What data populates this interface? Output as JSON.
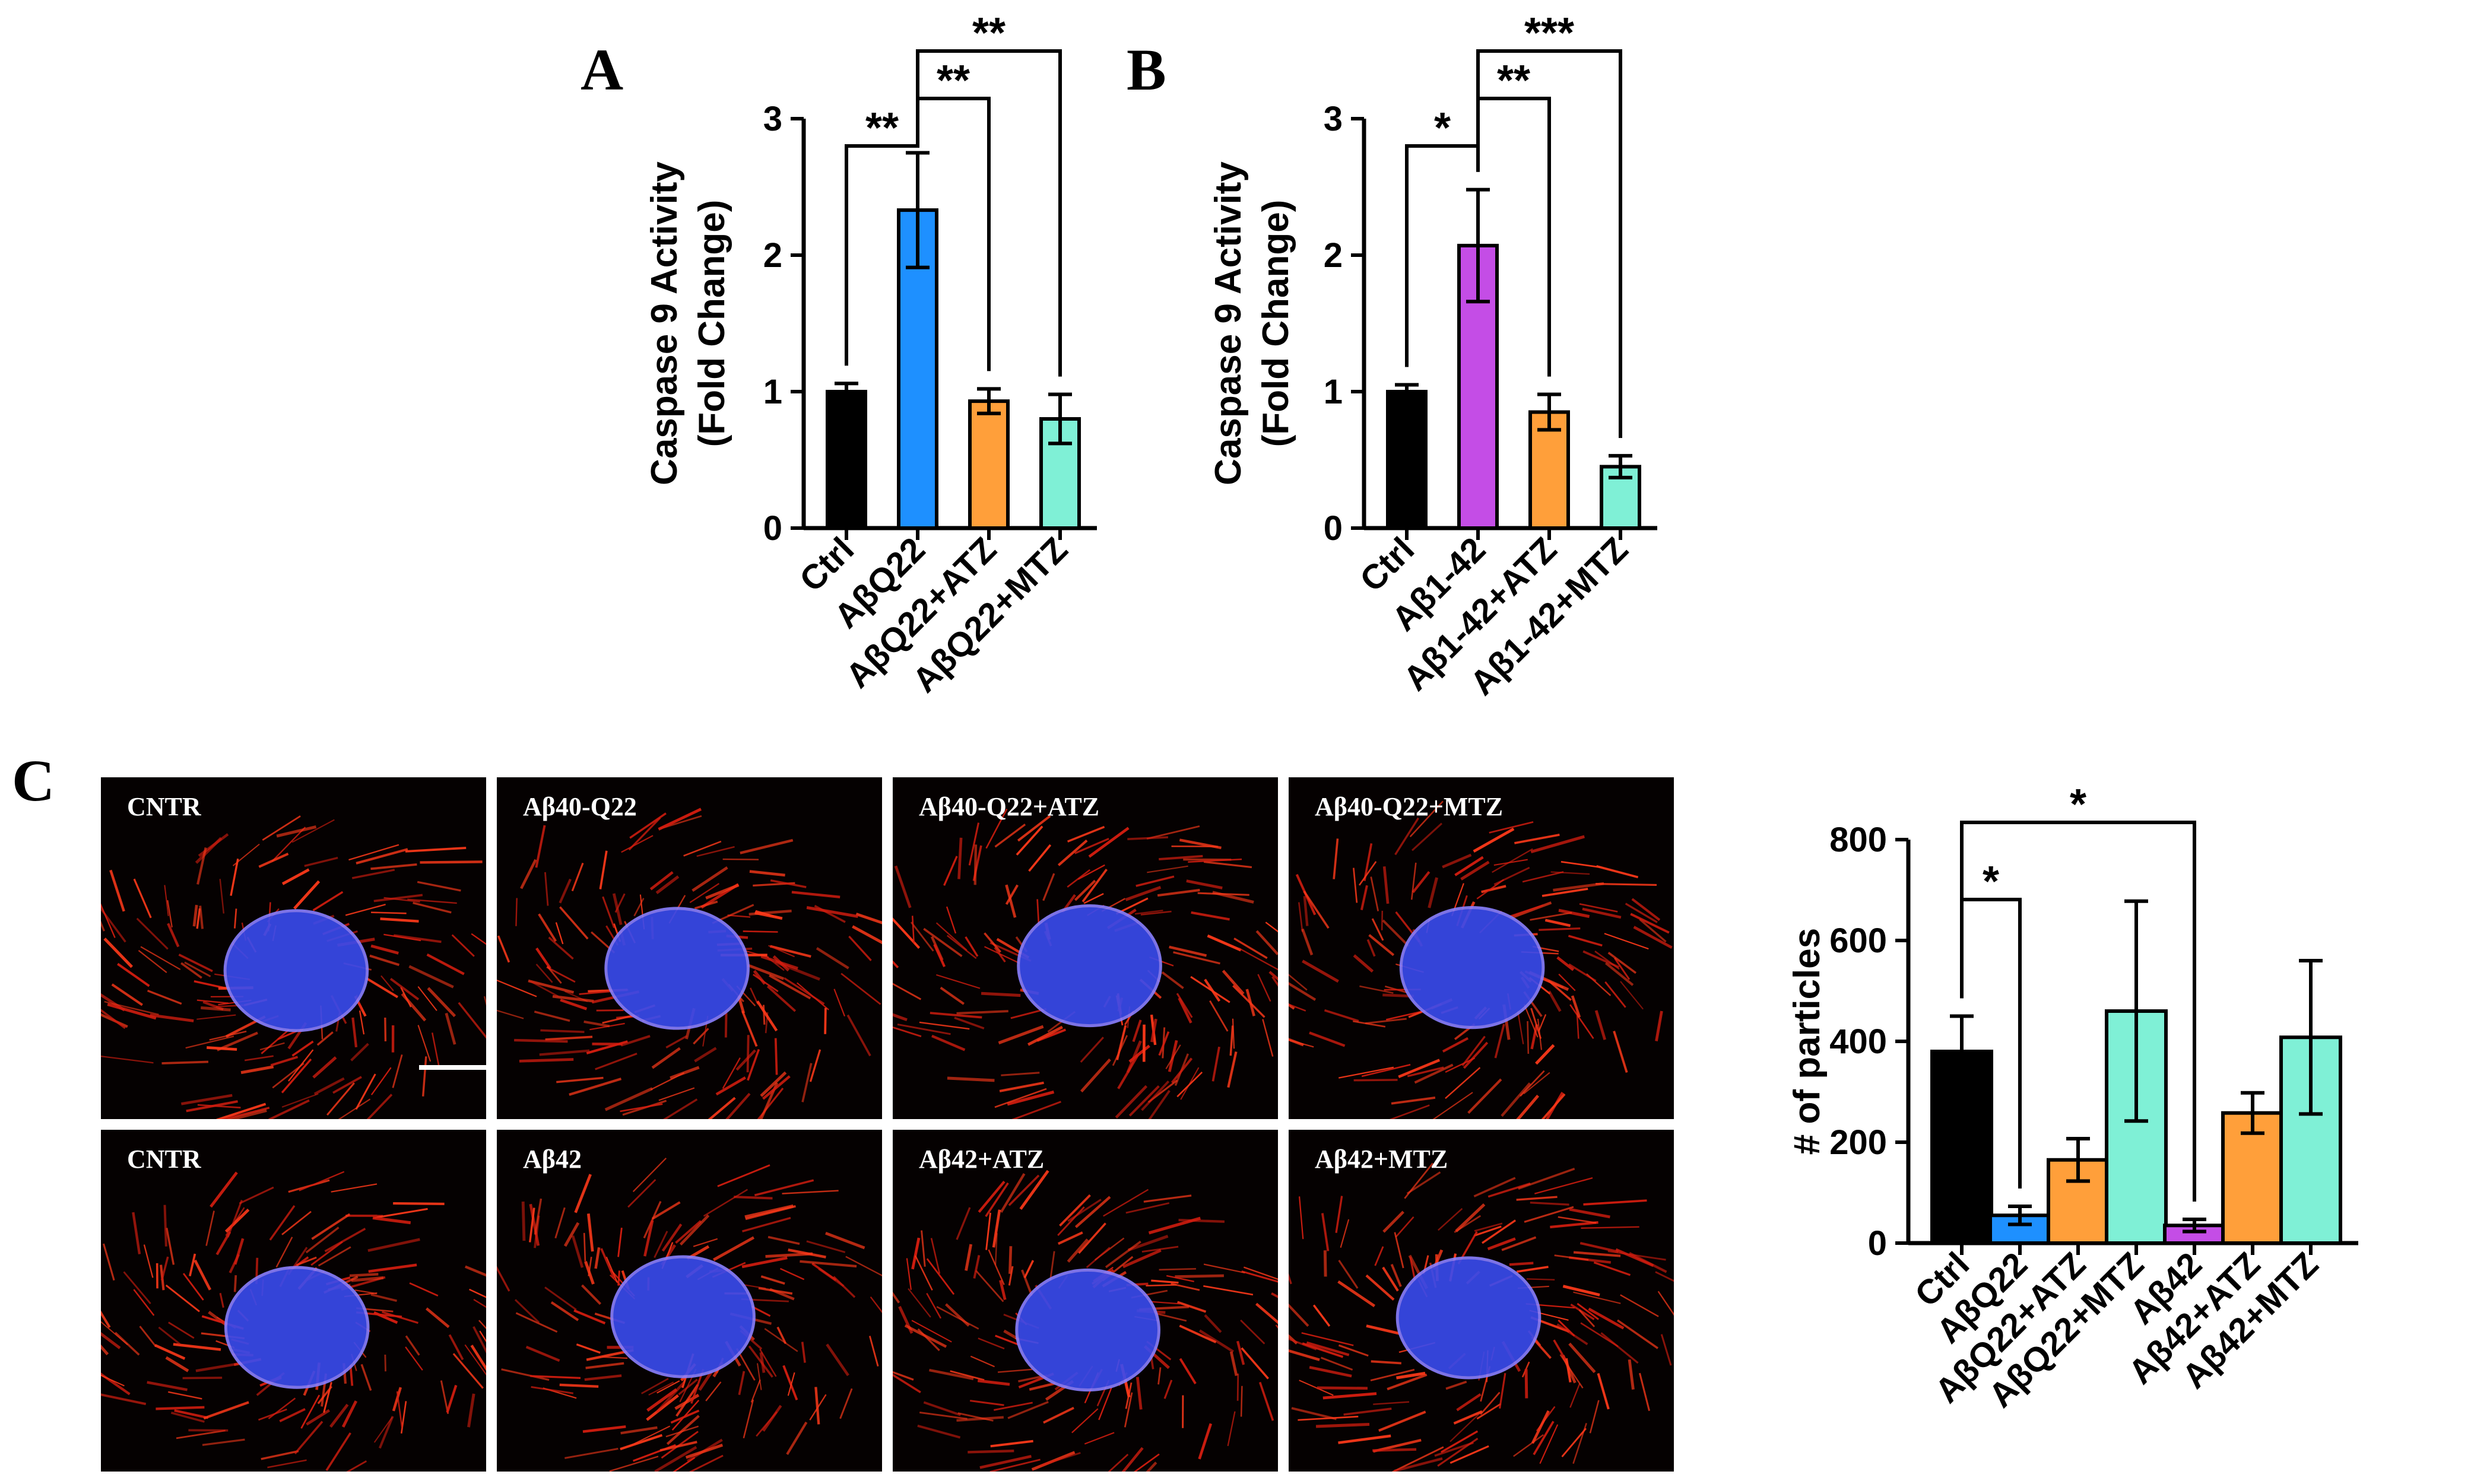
{
  "panels": {
    "a": "A",
    "b": "B",
    "c": "C"
  },
  "chart_data": [
    {
      "type": "bar",
      "panel": "A",
      "ylabel": "Caspase 9 Activity",
      "ylabel2": "(Fold Change)",
      "categories": [
        "Ctrl",
        "AβQ22",
        "AβQ22+ATZ",
        "AβQ22+MTZ"
      ],
      "values": [
        1.0,
        2.33,
        0.93,
        0.8
      ],
      "errors": [
        0.06,
        0.42,
        0.09,
        0.18
      ],
      "colors": [
        "#000000",
        "#1e90ff",
        "#ff9f3a",
        "#7ff0d6"
      ],
      "ylim": [
        0,
        3
      ],
      "yticks": [
        "0",
        "1",
        "2",
        "3"
      ],
      "significance": [
        {
          "from": 0,
          "to": 1,
          "label": "**"
        },
        {
          "from": 1,
          "to": 2,
          "label": "**"
        },
        {
          "from": 1,
          "to": 3,
          "label": "**"
        }
      ]
    },
    {
      "type": "bar",
      "panel": "B",
      "ylabel": "Caspase 9 Activity",
      "ylabel2": "(Fold Change)",
      "categories": [
        "Ctrl",
        "Aβ1-42",
        "Aβ1-42+ATZ",
        "Aβ1-42+MTZ"
      ],
      "values": [
        1.0,
        2.07,
        0.85,
        0.45
      ],
      "errors": [
        0.05,
        0.41,
        0.13,
        0.08
      ],
      "colors": [
        "#000000",
        "#c44de6",
        "#ff9f3a",
        "#7ff0d6"
      ],
      "ylim": [
        0,
        3
      ],
      "yticks": [
        "0",
        "1",
        "2",
        "3"
      ],
      "significance": [
        {
          "from": 0,
          "to": 1,
          "label": "*"
        },
        {
          "from": 1,
          "to": 2,
          "label": "**"
        },
        {
          "from": 1,
          "to": 3,
          "label": "***"
        }
      ]
    },
    {
      "type": "bar",
      "panel": "C",
      "ylabel": "# of particles",
      "categories": [
        "Ctrl",
        "AβQ22",
        "AβQ22+ATZ",
        "AβQ22+MTZ",
        "Aβ42",
        "Aβ42+ATZ",
        "Aβ42+MTZ"
      ],
      "values": [
        380,
        55,
        165,
        460,
        35,
        258,
        408
      ],
      "errors": [
        70,
        18,
        42,
        218,
        12,
        40,
        152
      ],
      "colors": [
        "#000000",
        "#1e90ff",
        "#ff9f3a",
        "#7ff0d6",
        "#c44de6",
        "#ff9f3a",
        "#7ff0d6"
      ],
      "ylim": [
        0,
        800
      ],
      "yticks": [
        "0",
        "200",
        "400",
        "600",
        "800"
      ],
      "significance": [
        {
          "from": 0,
          "to": 1,
          "label": "*"
        },
        {
          "from": 0,
          "to": 4,
          "label": "*"
        }
      ]
    }
  ],
  "micrographs": [
    {
      "label": "CNTR",
      "scale_bar": true
    },
    {
      "label": "Aβ40-Q22"
    },
    {
      "label": "Aβ40-Q22+ATZ"
    },
    {
      "label": "Aβ40-Q22+MTZ"
    },
    {
      "label": "CNTR"
    },
    {
      "label": "Aβ42"
    },
    {
      "label": "Aβ42+ATZ"
    },
    {
      "label": "Aβ42+MTZ"
    }
  ]
}
